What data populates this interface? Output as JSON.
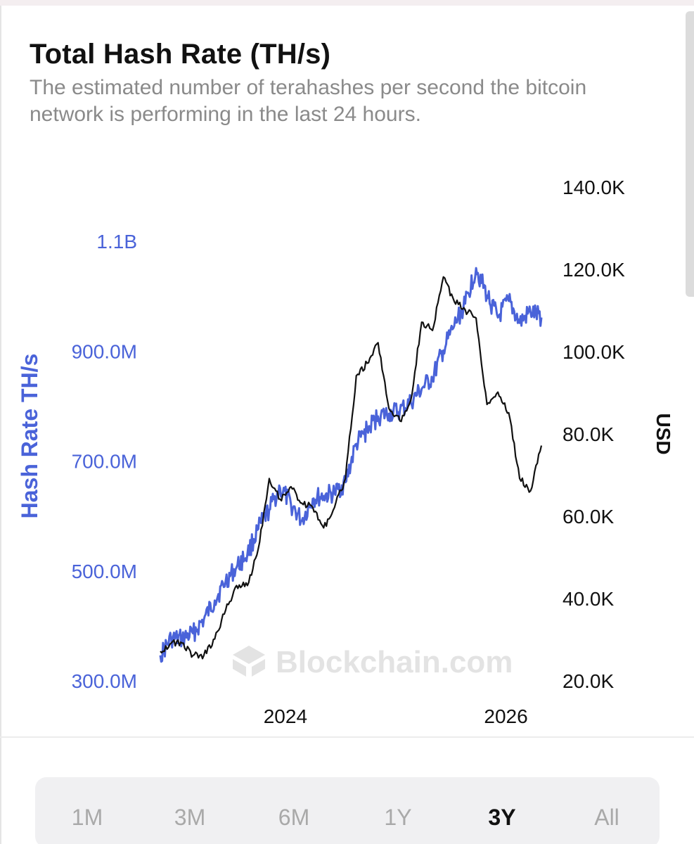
{
  "title": "Total Hash Rate (TH/s)",
  "subtitle_line1": "The estimated number of terahashes per second the bitcoin",
  "subtitle_line2": "network is performing in the last 24 hours.",
  "watermark": "Blockchain.com",
  "colors": {
    "hash_rate": "#4a63d9",
    "price": "#111111",
    "subtitle": "#8a8a8a",
    "active_range": "#111111",
    "inactive_range": "#a9a9a9"
  },
  "time_ranges": [
    {
      "label": "1M",
      "active": false
    },
    {
      "label": "3M",
      "active": false
    },
    {
      "label": "6M",
      "active": false
    },
    {
      "label": "1Y",
      "active": false
    },
    {
      "label": "3Y",
      "active": true
    },
    {
      "label": "All",
      "active": false
    }
  ],
  "chart_data": {
    "type": "line",
    "x_ticks": [
      "2024",
      "2026"
    ],
    "left_axis": {
      "label": "Hash Rate TH/s",
      "ticks": [
        "1.1B",
        "900.0M",
        "700.0M",
        "500.0M",
        "300.0M"
      ],
      "tick_values": [
        1100,
        900,
        700,
        500,
        300
      ],
      "unit": "M TH/s",
      "ylim": [
        300,
        1100
      ]
    },
    "right_axis": {
      "label": "USD",
      "ticks": [
        "140.0K",
        "120.0K",
        "100.0K",
        "80.0K",
        "60.0K",
        "40.0K",
        "20.0K"
      ],
      "tick_values": [
        140,
        120,
        100,
        80,
        60,
        40,
        20
      ],
      "unit": "K USD",
      "ylim": [
        20,
        140
      ]
    },
    "series": [
      {
        "name": "Hash Rate TH/s",
        "axis": "left",
        "color": "#4a63d9",
        "x": [
          "2023-05",
          "2023-06",
          "2023-07",
          "2023-08",
          "2023-09",
          "2023-10",
          "2023-11",
          "2023-12",
          "2024-01",
          "2024-02",
          "2024-03",
          "2024-04",
          "2024-05",
          "2024-06",
          "2024-07",
          "2024-08",
          "2024-09",
          "2024-10",
          "2024-11",
          "2024-12",
          "2025-01",
          "2025-02",
          "2025-03",
          "2025-04",
          "2025-05",
          "2025-06",
          "2025-07",
          "2025-08",
          "2025-09",
          "2025-10",
          "2025-11",
          "2025-12",
          "2026-01",
          "2026-02",
          "2026-03",
          "2026-04"
        ],
        "values": [
          345,
          375,
          375,
          385,
          410,
          445,
          480,
          505,
          530,
          575,
          610,
          650,
          620,
          590,
          630,
          635,
          640,
          660,
          730,
          755,
          780,
          785,
          790,
          805,
          830,
          850,
          900,
          945,
          985,
          1050,
          1000,
          960,
          990,
          950,
          970,
          960
        ]
      },
      {
        "name": "USD",
        "axis": "right",
        "color": "#111111",
        "x": [
          "2023-05",
          "2023-06",
          "2023-07",
          "2023-08",
          "2023-09",
          "2023-10",
          "2023-11",
          "2023-12",
          "2024-01",
          "2024-02",
          "2024-03",
          "2024-04",
          "2024-05",
          "2024-06",
          "2024-07",
          "2024-08",
          "2024-09",
          "2024-10",
          "2024-11",
          "2024-12",
          "2025-01",
          "2025-02",
          "2025-03",
          "2025-04",
          "2025-05",
          "2025-06",
          "2025-07",
          "2025-08",
          "2025-09",
          "2025-10",
          "2025-11",
          "2025-12",
          "2026-01",
          "2026-02",
          "2026-03",
          "2026-04"
        ],
        "values": [
          27,
          29,
          29,
          26,
          26,
          30,
          37,
          43,
          43,
          52,
          69,
          64,
          67,
          63,
          62,
          57,
          62,
          69,
          94,
          97,
          102,
          86,
          83,
          88,
          107,
          105,
          118,
          112,
          110,
          108,
          87,
          90,
          85,
          69,
          66,
          77
        ]
      }
    ]
  }
}
